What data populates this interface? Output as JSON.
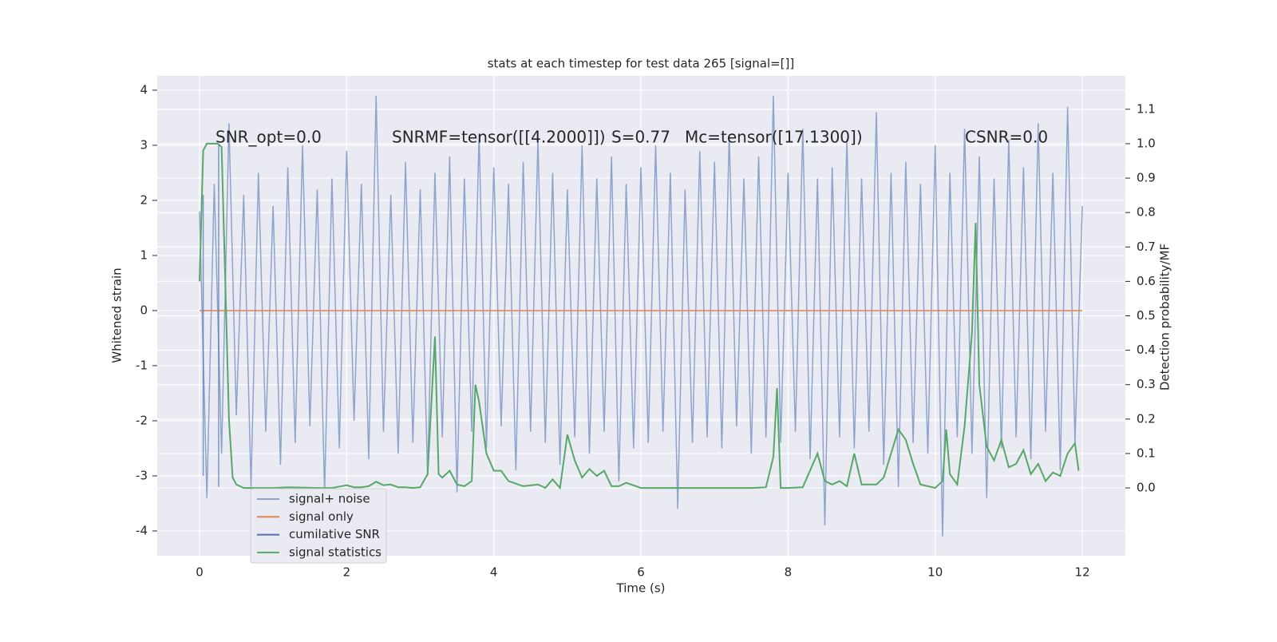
{
  "chart_data": {
    "type": "line",
    "title": "stats at each timestep for test data 265 [signal=[]]",
    "x_label": "Time (s)",
    "y_label": "Whitened strain",
    "y2_label": "Detection probability/MF",
    "xlim": [
      -0.575,
      12.585
    ],
    "xticks": [
      0,
      2,
      4,
      6,
      8,
      10,
      12
    ],
    "ylim": [
      -4.45,
      4.26
    ],
    "yticks": [
      -4,
      -3,
      -2,
      -1,
      0,
      1,
      2,
      3,
      4
    ],
    "y2lim": [
      -0.197,
      1.197
    ],
    "y2ticks": [
      {
        "value": 0,
        "label": "0.0"
      },
      0.1,
      0.2,
      0.3,
      0.4,
      0.5,
      0.6,
      0.7,
      0.8,
      0.9,
      {
        "value": 1,
        "label": "1.0"
      },
      1.1
    ],
    "grid": true,
    "legend": "lower left",
    "annotations": [
      "SNR_opt=0.0",
      "SNRMF=tensor([[4.2000]])",
      "S=0.77",
      "Mc=tensor([17.1300])",
      "CSNR=0.0"
    ],
    "series": [
      {
        "name": "signal+ noise",
        "color": "#8fa4cc",
        "x": [
          0,
          0.1,
          0.2,
          0.3,
          0.4,
          0.5,
          0.6,
          0.7,
          0.8,
          0.9,
          1,
          1.1,
          1.2,
          1.3,
          1.4,
          1.5,
          1.6,
          1.7,
          1.8,
          1.9,
          2,
          2.1,
          2.2,
          2.3,
          2.4,
          2.5,
          2.6,
          2.7,
          2.8,
          2.9,
          3,
          3.1,
          3.2,
          3.3,
          3.4,
          3.5,
          3.6,
          3.7,
          3.8,
          3.9,
          4,
          4.1,
          4.2,
          4.3,
          4.4,
          4.5,
          4.6,
          4.7,
          4.8,
          4.9,
          5,
          5.1,
          5.2,
          5.3,
          5.4,
          5.5,
          5.6,
          5.7,
          5.8,
          5.9,
          6,
          6.1,
          6.2,
          6.3,
          6.4,
          6.5,
          6.6,
          6.7,
          6.8,
          6.9,
          7,
          7.1,
          7.2,
          7.3,
          7.4,
          7.5,
          7.6,
          7.7,
          7.8,
          7.9,
          8,
          8.1,
          8.2,
          8.3,
          8.4,
          8.5,
          8.6,
          8.7,
          8.8,
          8.9,
          9,
          9.1,
          9.2,
          9.3,
          9.4,
          9.5,
          9.6,
          9.7,
          9.8,
          9.9,
          10,
          10.1,
          10.2,
          10.3,
          10.4,
          10.5,
          10.6,
          10.7,
          10.8,
          10.9,
          11,
          11.1,
          11.2,
          11.3,
          11.4,
          11.5,
          11.6,
          11.7,
          11.8,
          11.9,
          12
        ],
        "values": [
          1.8,
          -3.4,
          2.3,
          -2.6,
          3.4,
          -1.9,
          2.1,
          -3.2,
          2.5,
          -2.2,
          1.9,
          -2.8,
          2.6,
          -2.4,
          3.0,
          -2.1,
          2.2,
          -3.3,
          2.4,
          -2.5,
          2.9,
          -2.0,
          2.3,
          -2.7,
          3.9,
          -2.2,
          2.1,
          -2.6,
          2.7,
          -2.4,
          2.2,
          -3.0,
          2.5,
          -2.3,
          2.8,
          -3.3,
          2.4,
          -2.2,
          3.2,
          -2.5,
          2.6,
          -2.1,
          2.3,
          -2.9,
          2.7,
          -2.2,
          3.1,
          -2.4,
          2.5,
          -2.8,
          2.2,
          -2.3,
          3.0,
          -2.6,
          2.4,
          -2.2,
          2.8,
          -3.1,
          2.3,
          -2.5,
          2.6,
          -2.4,
          3.0,
          -2.2,
          2.5,
          -3.6,
          2.2,
          -2.4,
          2.9,
          -2.3,
          2.7,
          -2.5,
          3.2,
          -2.1,
          2.4,
          -2.6,
          2.8,
          -2.3,
          3.9,
          -2.4,
          2.5,
          -2.2,
          3.3,
          -2.7,
          2.4,
          -3.9,
          2.6,
          -2.3,
          3.1,
          -2.5,
          2.4,
          -2.2,
          3.6,
          -2.8,
          2.5,
          -3.2,
          2.7,
          -2.4,
          2.3,
          -2.6,
          3.0,
          -4.1,
          2.5,
          -2.3,
          3.3,
          -2.6,
          2.8,
          -3.4,
          2.4,
          -2.5,
          3.1,
          -2.3,
          2.6,
          -2.7,
          3.4,
          -2.2,
          2.5,
          -2.9,
          3.7,
          -2.4,
          1.9
        ]
      },
      {
        "name": "signal only",
        "color": "#dd8452",
        "x": [
          0,
          12
        ],
        "values": [
          0,
          0
        ]
      },
      {
        "name": "cumilative SNR",
        "color": "#4c72b0",
        "x": [
          0.05,
          0.05,
          0.15,
          0.26,
          0.26
        ],
        "values": [
          2.1,
          -3.0,
          null,
          3.0,
          -3.2
        ]
      },
      {
        "name": "signal statistics",
        "color": "#55a868",
        "axis": "y2",
        "x": [
          0,
          0.05,
          0.1,
          0.15,
          0.2,
          0.25,
          0.3,
          0.35,
          0.4,
          0.45,
          0.5,
          0.6,
          0.8,
          1.0,
          1.2,
          1.4,
          1.6,
          1.8,
          2.0,
          2.1,
          2.2,
          2.3,
          2.4,
          2.5,
          2.6,
          2.7,
          2.8,
          2.9,
          3.0,
          3.1,
          3.2,
          3.25,
          3.3,
          3.4,
          3.5,
          3.6,
          3.7,
          3.75,
          3.8,
          3.9,
          4.0,
          4.1,
          4.2,
          4.4,
          4.6,
          4.7,
          4.8,
          4.9,
          5.0,
          5.1,
          5.2,
          5.3,
          5.4,
          5.5,
          5.6,
          5.7,
          5.8,
          6.0,
          6.2,
          6.5,
          7.0,
          7.5,
          7.7,
          7.8,
          7.85,
          7.9,
          8.0,
          8.2,
          8.4,
          8.5,
          8.6,
          8.7,
          8.8,
          8.9,
          9.0,
          9.2,
          9.3,
          9.4,
          9.5,
          9.6,
          9.7,
          9.8,
          10.0,
          10.1,
          10.15,
          10.2,
          10.3,
          10.4,
          10.5,
          10.55,
          10.6,
          10.7,
          10.8,
          10.9,
          11.0,
          11.1,
          11.2,
          11.3,
          11.4,
          11.5,
          11.6,
          11.7,
          11.8,
          11.9,
          11.95
        ],
        "values": [
          0.6,
          0.98,
          1.0,
          1.0,
          1.0,
          1.0,
          0.99,
          0.6,
          0.2,
          0.03,
          0.01,
          0.0,
          0.0,
          0.0,
          0.002,
          0.001,
          0.0,
          0.0,
          0.008,
          0.002,
          0.002,
          0.005,
          0.018,
          0.008,
          0.01,
          0.002,
          0.002,
          0.0,
          0.002,
          0.04,
          0.44,
          0.04,
          0.03,
          0.05,
          0.01,
          0.005,
          0.02,
          0.3,
          0.25,
          0.1,
          0.05,
          0.05,
          0.02,
          0.005,
          0.01,
          0.0,
          0.025,
          0.0,
          0.155,
          0.08,
          0.03,
          0.055,
          0.035,
          0.05,
          0.005,
          0.005,
          0.015,
          0.0,
          0.0,
          0.0,
          0.0,
          0.0,
          0.002,
          0.09,
          0.29,
          0.0,
          0.0,
          0.002,
          0.1,
          0.02,
          0.01,
          0.02,
          0.005,
          0.1,
          0.01,
          0.01,
          0.03,
          0.1,
          0.17,
          0.14,
          0.07,
          0.01,
          0.0,
          0.02,
          0.17,
          0.04,
          0.01,
          0.18,
          0.45,
          0.77,
          0.3,
          0.12,
          0.08,
          0.14,
          0.06,
          0.07,
          0.11,
          0.04,
          0.07,
          0.02,
          0.045,
          0.035,
          0.1,
          0.13,
          0.05
        ]
      }
    ]
  }
}
